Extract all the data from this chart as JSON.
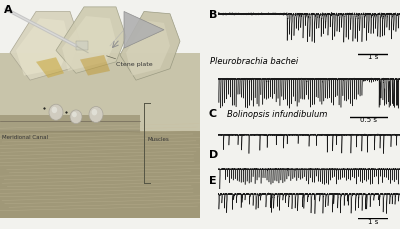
{
  "panel_B_label": "B",
  "panel_C_label": "C",
  "panel_D_label": "D",
  "panel_E_label": "E",
  "species_B": "Pleurobrachia bachei",
  "species_C": "Bolinopsis infundibulum",
  "scalebar_B1": "1 s",
  "scalebar_B2": "0.5 s",
  "scalebar_E": "1 s",
  "bg_color": "#f2f2ee",
  "trace_color": "#1a1a1a",
  "annotation_color": "#333333",
  "photo_bg": "#c8c0a8",
  "photo_dark": "#888070",
  "photo_light": "#e8dcc8",
  "label_fontsize": 7,
  "italic_fontsize": 6,
  "scalebar_fontsize": 5
}
